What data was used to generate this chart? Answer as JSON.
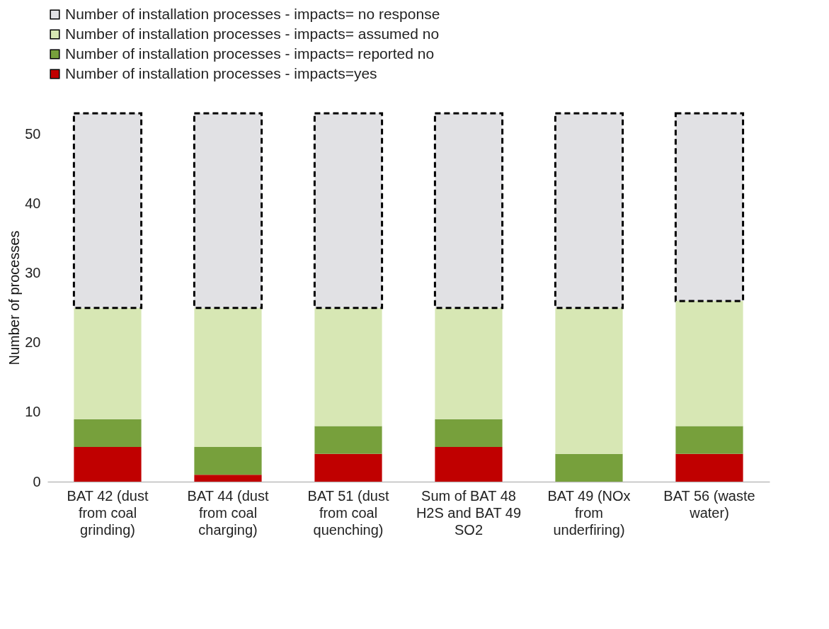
{
  "chart_data": {
    "type": "bar",
    "stacked": true,
    "ylabel": "Number of processes",
    "categories": [
      "BAT 42 (dust from coal grinding)",
      "BAT 44 (dust from coal charging)",
      "BAT 51 (dust from coal quenching)",
      "Sum of BAT 48 H2S and BAT 49 SO2",
      "BAT 49 (NOx from underfiring)",
      "BAT 56 (waste water)"
    ],
    "series": [
      {
        "name": "Number of installation processes - impacts=yes",
        "color": "#c00000",
        "values": [
          5,
          1,
          4,
          5,
          0,
          4
        ]
      },
      {
        "name": "Number of installation processes - impacts= reported no",
        "color": "#77a03c",
        "values": [
          4,
          4,
          4,
          4,
          4,
          4
        ]
      },
      {
        "name": "Number of installation processes - impacts= assumed no",
        "color": "#d7e7b4",
        "values": [
          16,
          20,
          17,
          16,
          21,
          18
        ]
      },
      {
        "name": "Number of installation processes - impacts= no response",
        "color": "#e1e1e4",
        "line_style": "dashed",
        "values": [
          28,
          28,
          28,
          28,
          28,
          27
        ]
      }
    ],
    "ylim": [
      0,
      53
    ],
    "yticks": [
      0,
      10,
      20,
      30,
      40,
      50
    ],
    "grid": false,
    "legend": "top"
  }
}
